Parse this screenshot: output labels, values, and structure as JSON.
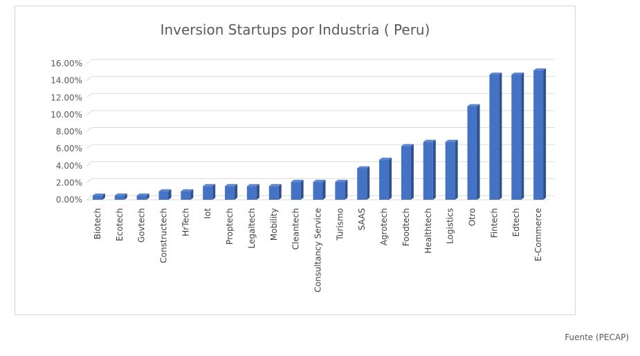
{
  "chart_data": {
    "type": "bar",
    "title": "Inversion Startups por Industria ( Peru)",
    "xlabel": "",
    "ylabel": "",
    "ylim": [
      0,
      16
    ],
    "y_ticks": [
      "0.00%",
      "2.00%",
      "4.00%",
      "6.00%",
      "8.00%",
      "10.00%",
      "12.00%",
      "14.00%",
      "16.00%"
    ],
    "y_unit": "%",
    "grid": true,
    "legend": false,
    "bar_color": "#4472C4",
    "categories": [
      "Biotech",
      "Ecotech",
      "Govtech",
      "Constructech",
      "HrTech",
      "Iot",
      "Proptech",
      "Legaltech",
      "Mobility",
      "Cleantech",
      "Consultancy Service",
      "Turismo",
      "SAAS",
      "Agrotech",
      "Foodtech",
      "Healthtech",
      "Logistics",
      "Otro",
      "Fintech",
      "Edtech",
      "E-Commerce"
    ],
    "values": [
      0.5,
      0.5,
      0.5,
      1.0,
      1.0,
      1.6,
      1.6,
      1.6,
      1.6,
      2.1,
      2.1,
      2.1,
      3.7,
      4.7,
      6.3,
      6.8,
      6.8,
      11.0,
      14.7,
      14.7,
      15.2
    ]
  },
  "source": "Fuente (PECAP)"
}
